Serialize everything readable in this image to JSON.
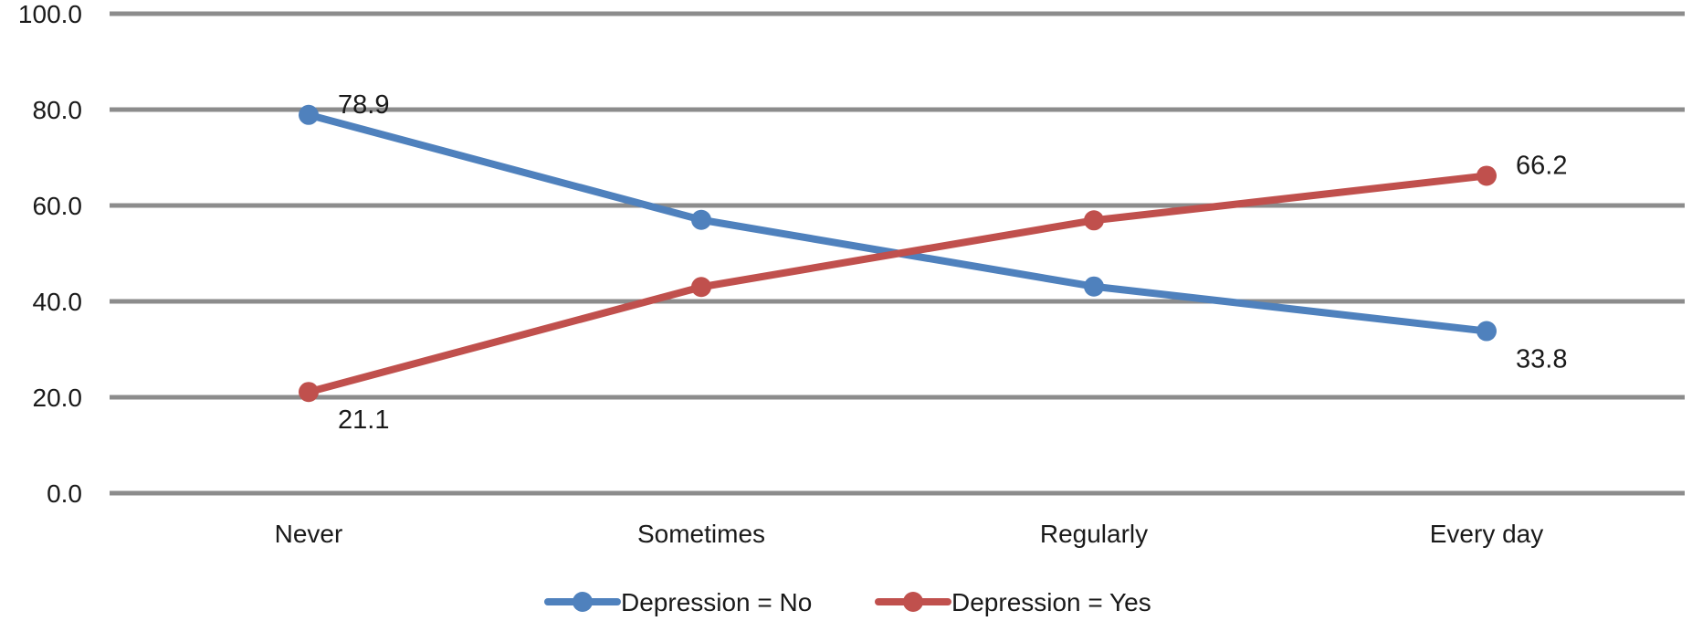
{
  "chart_data": {
    "type": "line",
    "categories": [
      "Never",
      "Sometimes",
      "Regularly",
      "Every day"
    ],
    "yticks": [
      "0.0",
      "20.0",
      "40.0",
      "60.0",
      "80.0",
      "100.0"
    ],
    "ylim": [
      0,
      100
    ],
    "grid": true,
    "legend_position": "bottom",
    "series": [
      {
        "name": "Depression = No",
        "color": "#4f81bd",
        "values": [
          78.9,
          57.0,
          43.1,
          33.8
        ],
        "data_labels": {
          "0": "78.9",
          "3": "33.8"
        }
      },
      {
        "name": "Depression = Yes",
        "color": "#c0504d",
        "values": [
          21.1,
          43.0,
          56.9,
          66.2
        ],
        "data_labels": {
          "0": "21.1",
          "3": "66.2"
        }
      }
    ]
  }
}
